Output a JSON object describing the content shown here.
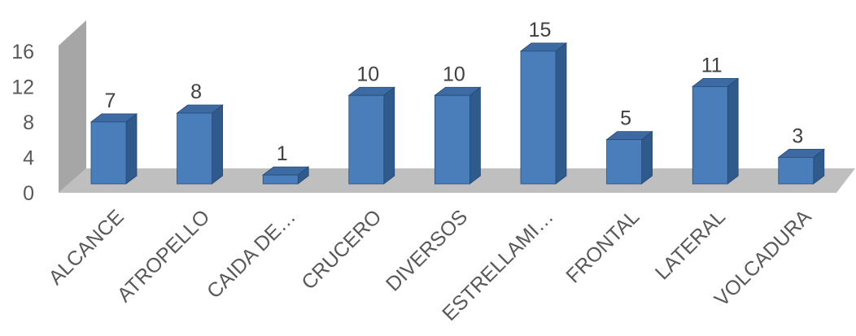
{
  "chart_data": {
    "type": "bar",
    "categories": [
      "ALCANCE",
      "ATROPELLO",
      "CAIDA DE…",
      "CRUCERO",
      "DIVERSOS",
      "ESTRELLAMI…",
      "FRONTAL",
      "LATERAL",
      "VOLCADURA"
    ],
    "values": [
      7,
      8,
      1,
      10,
      10,
      15,
      5,
      11,
      3
    ],
    "yticks": [
      "0",
      "4",
      "8",
      "12",
      "16"
    ],
    "ylim": [
      0,
      16
    ],
    "title": "",
    "xlabel": "",
    "ylabel": "",
    "grid": false,
    "legend": "none",
    "style": "3d-column"
  },
  "colors": {
    "bar_front": "#4a7ebb",
    "bar_side": "#2f5a8c",
    "bar_top": "#3d6aa3",
    "bar_edge": "#274b75",
    "wall": "#a6a6a6",
    "floor": "#bfbfbf"
  }
}
